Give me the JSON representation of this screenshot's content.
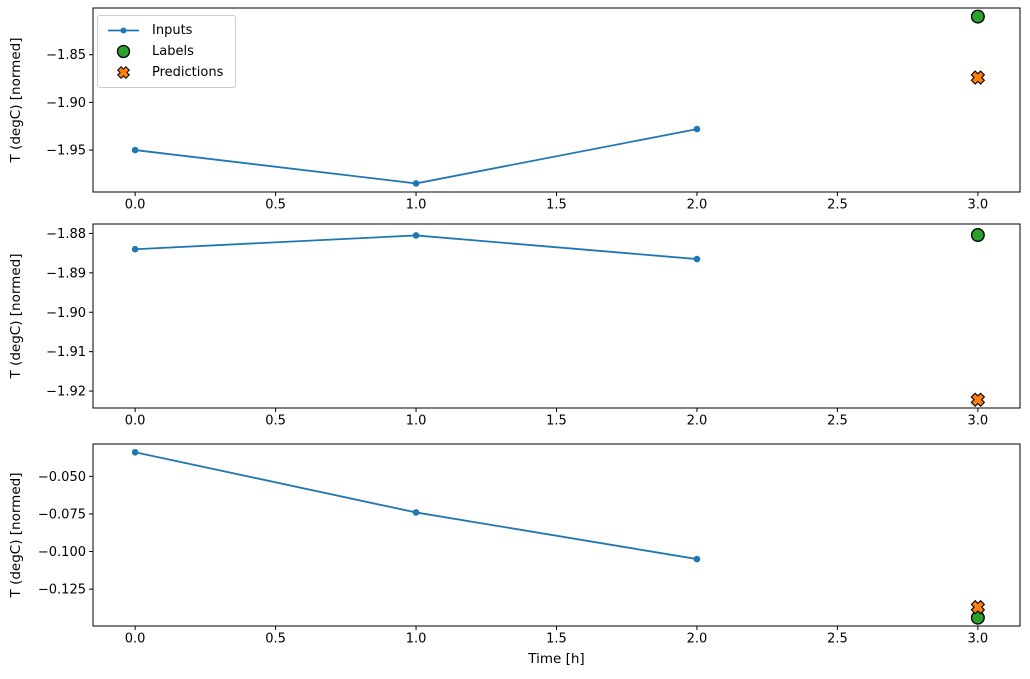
{
  "figure": {
    "background": "#ffffff",
    "colors": {
      "inputs": "#1f77b4",
      "labels_fill": "#2ca02c",
      "predictions_fill": "#ff7f0e",
      "marker_edge": "#000000",
      "spine": "#000000",
      "text": "#000000",
      "legend_border": "#cccccc",
      "legend_bg": "#ffffff"
    },
    "legend": {
      "position": "upper-left",
      "entries": [
        {
          "label": "Inputs",
          "marker": "line-dot-icon"
        },
        {
          "label": "Labels",
          "marker": "circle-icon"
        },
        {
          "label": "Predictions",
          "marker": "x-icon"
        }
      ]
    },
    "xlabel": "Time [h]",
    "ylabel": "T (degC) [normed]"
  },
  "chart_data": [
    {
      "type": "line",
      "title": "",
      "xlabel": "",
      "ylabel": "T (degC) [normed]",
      "grid": false,
      "legend_position": "upper-left",
      "xlim": [
        -0.15,
        3.15
      ],
      "ylim": [
        -1.994,
        -1.801
      ],
      "xticks": [
        0.0,
        0.5,
        1.0,
        1.5,
        2.0,
        2.5,
        3.0
      ],
      "xtick_labels": [
        "0.0",
        "0.5",
        "1.0",
        "1.5",
        "2.0",
        "2.5",
        "3.0"
      ],
      "yticks": [
        -1.85,
        -1.9,
        -1.95
      ],
      "ytick_labels": [
        "−1.85",
        "−1.90",
        "−1.95"
      ],
      "series": [
        {
          "name": "Inputs",
          "style": "line-marker",
          "x": [
            0,
            1,
            2
          ],
          "y": [
            -1.95,
            -1.985,
            -1.928
          ]
        },
        {
          "name": "Labels",
          "style": "scatter-circle",
          "x": [
            3
          ],
          "y": [
            -1.81
          ]
        },
        {
          "name": "Predictions",
          "style": "scatter-x",
          "x": [
            3
          ],
          "y": [
            -1.874
          ]
        }
      ]
    },
    {
      "type": "line",
      "title": "",
      "xlabel": "",
      "ylabel": "T (degC) [normed]",
      "grid": false,
      "xlim": [
        -0.15,
        3.15
      ],
      "ylim": [
        -1.9243,
        -1.8776
      ],
      "xticks": [
        0.0,
        0.5,
        1.0,
        1.5,
        2.0,
        2.5,
        3.0
      ],
      "xtick_labels": [
        "0.0",
        "0.5",
        "1.0",
        "1.5",
        "2.0",
        "2.5",
        "3.0"
      ],
      "yticks": [
        -1.88,
        -1.89,
        -1.9,
        -1.91,
        -1.92
      ],
      "ytick_labels": [
        "−1.88",
        "−1.89",
        "−1.90",
        "−1.91",
        "−1.92"
      ],
      "series": [
        {
          "name": "Inputs",
          "style": "line-marker",
          "x": [
            0,
            1,
            2
          ],
          "y": [
            -1.884,
            -1.8805,
            -1.8865
          ]
        },
        {
          "name": "Labels",
          "style": "scatter-circle",
          "x": [
            3
          ],
          "y": [
            -1.8804
          ]
        },
        {
          "name": "Predictions",
          "style": "scatter-x",
          "x": [
            3
          ],
          "y": [
            -1.9222
          ]
        }
      ]
    },
    {
      "type": "line",
      "title": "",
      "xlabel": "Time [h]",
      "ylabel": "T (degC) [normed]",
      "grid": false,
      "xlim": [
        -0.15,
        3.15
      ],
      "ylim": [
        -0.1495,
        -0.0285
      ],
      "xticks": [
        0.0,
        0.5,
        1.0,
        1.5,
        2.0,
        2.5,
        3.0
      ],
      "xtick_labels": [
        "0.0",
        "0.5",
        "1.0",
        "1.5",
        "2.0",
        "2.5",
        "3.0"
      ],
      "yticks": [
        -0.05,
        -0.075,
        -0.1,
        -0.125
      ],
      "ytick_labels": [
        "−0.050",
        "−0.075",
        "−0.100",
        "−0.125"
      ],
      "series": [
        {
          "name": "Inputs",
          "style": "line-marker",
          "x": [
            0,
            1,
            2
          ],
          "y": [
            -0.034,
            -0.074,
            -0.105
          ]
        },
        {
          "name": "Labels",
          "style": "scatter-circle",
          "x": [
            3
          ],
          "y": [
            -0.144
          ]
        },
        {
          "name": "Predictions",
          "style": "scatter-x",
          "x": [
            3
          ],
          "y": [
            -0.137
          ]
        }
      ]
    }
  ]
}
